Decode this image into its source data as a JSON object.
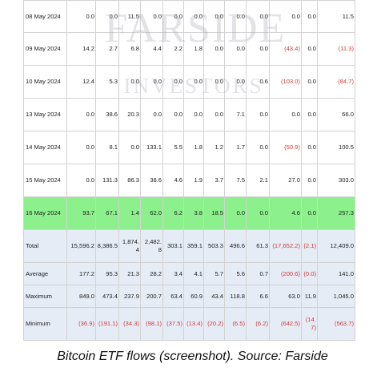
{
  "watermark": {
    "line1": "FARSIDE",
    "line2": "INVESTORS"
  },
  "rows": [
    {
      "date": "08 May 2024",
      "cells": [
        "0.0",
        "0.0",
        "11.5",
        "0.0",
        "0.0",
        "0.0",
        "0.0",
        "0.0",
        "0.0",
        "0.0",
        "0.0",
        "11.5"
      ]
    },
    {
      "date": "09 May 2024",
      "cells": [
        "14.2",
        "2.7",
        "6.8",
        "4.4",
        "2.2",
        "1.8",
        "0.0",
        "0.0",
        "0.0",
        "(43.4)",
        "0.0",
        "(11.3)"
      ]
    },
    {
      "date": "10 May 2024",
      "cells": [
        "12.4",
        "5.3",
        "0.0",
        "0.0",
        "0.0",
        "0.0",
        "0.0",
        "0.0",
        "0.6",
        "(103.0)",
        "0.0",
        "(84.7)"
      ]
    },
    {
      "date": "13 May 2024",
      "cells": [
        "0.0",
        "38.6",
        "20.3",
        "0.0",
        "0.0",
        "0.0",
        "0.0",
        "7.1",
        "0.0",
        "0.0",
        "0.0",
        "66.0"
      ]
    },
    {
      "date": "14 May 2024",
      "cells": [
        "0.0",
        "8.1",
        "0.0",
        "133.1",
        "5.5",
        "1.8",
        "1.2",
        "1.7",
        "0.0",
        "(50.9)",
        "0.0",
        "100.5"
      ]
    },
    {
      "date": "15 May 2024",
      "cells": [
        "0.0",
        "131.3",
        "86.3",
        "38.6",
        "4.6",
        "1.9",
        "3.7",
        "7.5",
        "2.1",
        "27.0",
        "0.0",
        "303.0"
      ]
    },
    {
      "date": "16 May 2024",
      "cells": [
        "93.7",
        "67.1",
        "1.4",
        "62.0",
        "6.2",
        "3.8",
        "18.5",
        "0.0",
        "0.0",
        "4.6",
        "0.0",
        "257.3"
      ]
    }
  ],
  "stats": [
    {
      "label": "Total",
      "cells": [
        "15,596.2",
        "8,386.5",
        "1,874.4",
        "2,482.8",
        "303.1",
        "359.1",
        "503.3",
        "496.6",
        "61.3",
        "(17,652.2)",
        "(2.1)",
        "12,409.0"
      ]
    },
    {
      "label": "Average",
      "cells": [
        "177.2",
        "95.3",
        "21.3",
        "28.2",
        "3.4",
        "4.1",
        "5.7",
        "5.6",
        "0.7",
        "(200.6)",
        "(0.0)",
        "141.0"
      ]
    },
    {
      "label": "Maximum",
      "cells": [
        "849.0",
        "473.4",
        "237.9",
        "200.7",
        "63.4",
        "60.9",
        "43.4",
        "118.8",
        "6.6",
        "63.0",
        "11.9",
        "1,045.0"
      ]
    },
    {
      "label": "Minimum",
      "cells": [
        "(36.9)",
        "(191.1)",
        "(34.3)",
        "(98.1)",
        "(37.5)",
        "(13.4)",
        "(20.2)",
        "(6.5)",
        "(6.2)",
        "(642.5)",
        "(14.7)",
        "(563.7)"
      ]
    }
  ],
  "caption": "Bitcoin ETF flows (screenshot). Source: Farside"
}
